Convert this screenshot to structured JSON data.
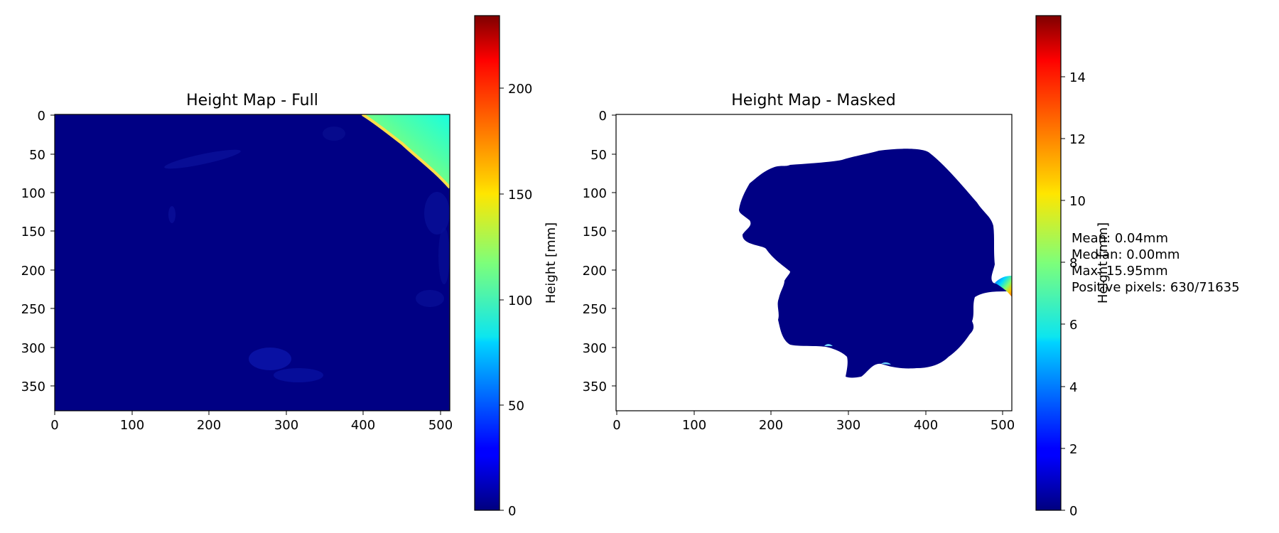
{
  "chart_data": [
    {
      "type": "heatmap",
      "title": "Height Map - Full",
      "xlim": [
        0,
        512
      ],
      "ylim": [
        384,
        0
      ],
      "xticks": [
        "0",
        "100",
        "200",
        "300",
        "400",
        "500"
      ],
      "yticks": [
        "0",
        "50",
        "100",
        "150",
        "200",
        "250",
        "300",
        "350"
      ],
      "colormap": "jet",
      "colorbar": {
        "label": "Height [mm]",
        "range": [
          0,
          235
        ],
        "ticks": [
          "0",
          "50",
          "100",
          "150",
          "200"
        ]
      }
    },
    {
      "type": "heatmap",
      "title": "Height Map - Masked",
      "xlim": [
        0,
        512
      ],
      "ylim": [
        384,
        0
      ],
      "xticks": [
        "0",
        "100",
        "200",
        "300",
        "400",
        "500"
      ],
      "yticks": [
        "0",
        "50",
        "100",
        "150",
        "200",
        "250",
        "300",
        "350"
      ],
      "colormap": "jet",
      "colorbar": {
        "label": "Height [mm]",
        "range": [
          0,
          15.95
        ],
        "ticks": [
          "0",
          "2",
          "4",
          "6",
          "8",
          "10",
          "12",
          "14"
        ]
      },
      "stats": {
        "mean": "Mean: 0.04mm",
        "median": "Median: 0.00mm",
        "max": "Max: 15.95mm",
        "positive": "Positive pixels: 630/71635"
      }
    }
  ]
}
